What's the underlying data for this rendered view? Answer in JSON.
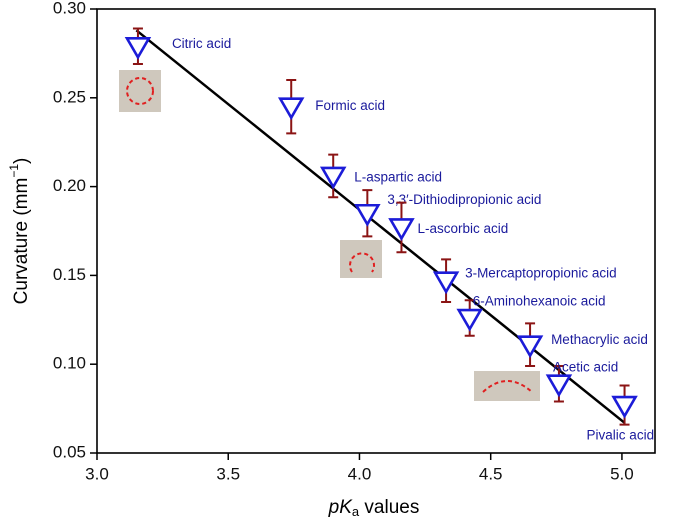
{
  "chart_data": {
    "type": "scatter",
    "x_label": {
      "italic": "pK",
      "sub": "a",
      "rest": " values"
    },
    "y_label": {
      "main": "Curvature (mm",
      "sup": "−1",
      "close": ")"
    },
    "xlim": [
      3.0,
      5.126
    ],
    "ylim": [
      0.05,
      0.3
    ],
    "xticks": [
      {
        "value": 3.0,
        "label": "3.0"
      },
      {
        "value": 3.5,
        "label": "3.5"
      },
      {
        "value": 4.0,
        "label": "4.0"
      },
      {
        "value": 4.5,
        "label": "4.5"
      },
      {
        "value": 5.0,
        "label": "5.0"
      }
    ],
    "yticks": [
      {
        "value": 0.05,
        "label": "0.05"
      },
      {
        "value": 0.1,
        "label": "0.10"
      },
      {
        "value": 0.15,
        "label": "0.15"
      },
      {
        "value": 0.2,
        "label": "0.20"
      },
      {
        "value": 0.25,
        "label": "0.25"
      },
      {
        "value": 0.3,
        "label": "0.30"
      }
    ],
    "points": {
      "color": "#1c1cd8",
      "error_color": "#8b1414",
      "labels": [
        "Citric acid",
        "Formic acid",
        "L-aspartic acid",
        "3,3′-Dithiodipropionic acid",
        "L-ascorbic acid",
        "3-Mercaptopropionic acid",
        "6-Aminohexanoic acid",
        "Methacrylic acid",
        "Acetic acid",
        "Pivalic acid"
      ],
      "x": [
        3.156,
        3.74,
        3.9,
        4.03,
        4.16,
        4.33,
        4.42,
        4.65,
        4.76,
        5.01
      ],
      "values": [
        0.279,
        0.245,
        0.206,
        0.185,
        0.177,
        0.147,
        0.126,
        0.111,
        0.089,
        0.077
      ],
      "errors": [
        0.01,
        0.015,
        0.012,
        0.013,
        0.014,
        0.012,
        0.01,
        0.012,
        0.01,
        0.011
      ]
    },
    "fit": {
      "color": "#000000",
      "x": [
        3.15,
        5.01
      ],
      "y": [
        0.288,
        0.067
      ]
    }
  }
}
